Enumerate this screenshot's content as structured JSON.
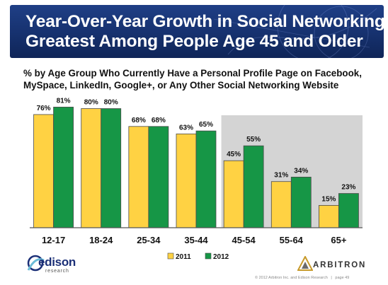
{
  "slide": {
    "title_line1": "Year-Over-Year Growth in Social Networking",
    "title_line2": "Greatest Among People Age 45 and Older",
    "subtitle_line1": "% by Age Group Who Currently Have a Personal Profile Page on Facebook,",
    "subtitle_line2": "MySpace, LinkedIn, Google+, or Any Other Social Networking Website",
    "footer": "© 2012 Arbitron Inc. and Edison Research",
    "page": "page 49",
    "edison_logo": {
      "word": "edison",
      "sub": "research"
    },
    "arbitron_logo": {
      "word": "ARBITRON"
    }
  },
  "chart_data": {
    "type": "bar",
    "categories": [
      "12-17",
      "18-24",
      "25-34",
      "35-44",
      "45-54",
      "55-64",
      "65+"
    ],
    "series": [
      {
        "name": "2011",
        "values": [
          76,
          80,
          68,
          63,
          45,
          31,
          15
        ],
        "labels": [
          "76%",
          "80%",
          "68%",
          "63%",
          "45%",
          "31%",
          "15%"
        ],
        "color": "#ffd243"
      },
      {
        "name": "2012",
        "values": [
          81,
          80,
          68,
          65,
          55,
          34,
          23
        ],
        "labels": [
          "81%",
          "80%",
          "68%",
          "65%",
          "55%",
          "34%",
          "23%"
        ],
        "color": "#169646"
      }
    ],
    "ylim": [
      0,
      85
    ],
    "highlight_categories": [
      "45-54",
      "55-64",
      "65+"
    ],
    "highlight_color": "#d4d4d4",
    "legend_position": "bottom"
  }
}
